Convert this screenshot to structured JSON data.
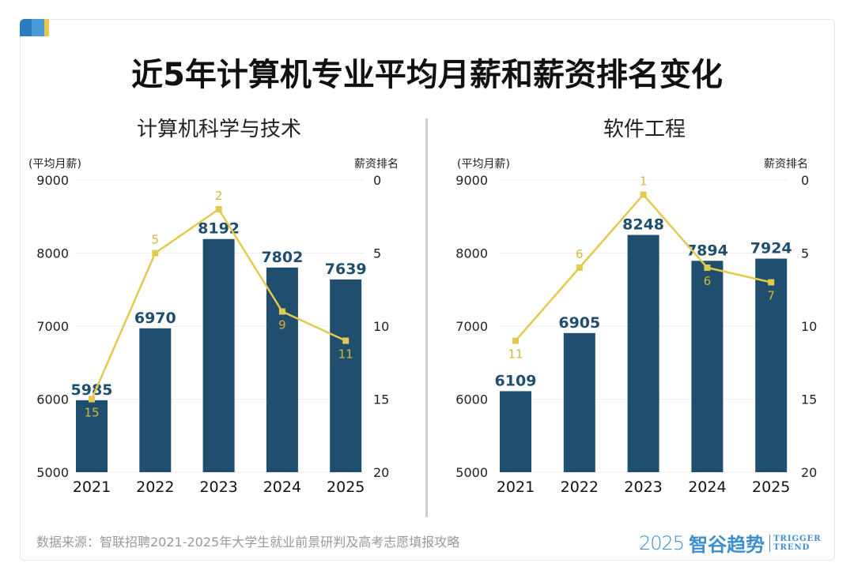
{
  "title": "近5年计算机专业平均月薪和薪资排名变化",
  "source": "数据来源：智联招聘2021-2025年大学生就业前景研判及高考志愿填报攻略",
  "logo": {
    "year": "2025",
    "name": "智谷趋势",
    "en1": "TRIGGER",
    "en2": "TREND"
  },
  "colors": {
    "bar": "#1f4e6e",
    "line": "#e2c94f",
    "label_bar": "#1f4e6e",
    "label_line": "#d4b83a"
  },
  "chart_data": [
    {
      "type": "bar+line",
      "title": "计算机科学与技术",
      "ylabel": "(平均月薪)",
      "y2label": "薪资排名",
      "categories": [
        "2021",
        "2022",
        "2023",
        "2024",
        "2025"
      ],
      "ylim": [
        5000,
        9000
      ],
      "yticks": [
        5000,
        6000,
        7000,
        8000,
        9000
      ],
      "y2lim": [
        0,
        20
      ],
      "y2ticks": [
        0,
        5,
        10,
        15,
        20
      ],
      "y2_inverted": true,
      "series": [
        {
          "type": "bar",
          "values": [
            5985,
            6970,
            8192,
            7802,
            7639
          ]
        },
        {
          "type": "line",
          "axis": "right",
          "values": [
            15,
            5,
            2,
            9,
            11
          ]
        }
      ]
    },
    {
      "type": "bar+line",
      "title": "软件工程",
      "ylabel": "(平均月薪)",
      "y2label": "薪资排名",
      "categories": [
        "2021",
        "2022",
        "2023",
        "2024",
        "2025"
      ],
      "ylim": [
        5000,
        9000
      ],
      "yticks": [
        5000,
        6000,
        7000,
        8000,
        9000
      ],
      "y2lim": [
        0,
        20
      ],
      "y2ticks": [
        0,
        5,
        10,
        15,
        20
      ],
      "y2_inverted": true,
      "series": [
        {
          "type": "bar",
          "values": [
            6109,
            6905,
            8248,
            7894,
            7924
          ]
        },
        {
          "type": "line",
          "axis": "right",
          "values": [
            11,
            6,
            1,
            6,
            7
          ]
        }
      ]
    }
  ]
}
